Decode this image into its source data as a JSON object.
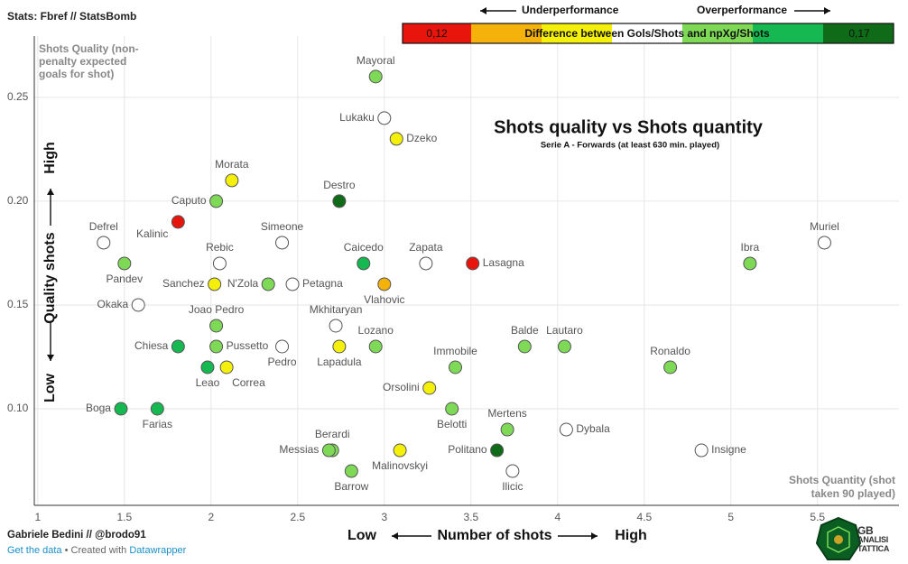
{
  "header": {
    "stats_note": "Stats: Fbref // StatsBomb",
    "author": "Gabriele Bedini // @brodo91",
    "credits_link": "Get the data",
    "credits_sep": " • Created with ",
    "credits_tool": "Datawrapper"
  },
  "legend": {
    "under_label": "Underperformance",
    "over_label": "Overperformance",
    "min_label": "0,12",
    "max_label": "0,17",
    "center_label": "Difference between Gols/Shots and npXg/Shots",
    "colors": [
      "#e8150d",
      "#f5b20a",
      "#f4f00a",
      "#ffffff",
      "#7ed957",
      "#15b851",
      "#0f6b18"
    ]
  },
  "logo": {
    "line1": "GB",
    "line2": "ANALISI",
    "line3": "TATTICA"
  },
  "chart_data": {
    "type": "scatter",
    "title": "Shots quality vs Shots quantity",
    "subtitle": "Serie A - Forwards (at least 630 min. played)",
    "xlabel": "Number of shots",
    "x_low": "Low",
    "x_high": "High",
    "ylabel": "Quality shots",
    "y_low": "Low",
    "y_high": "High",
    "y_note": "Shots Quality (non-penalty expected goals for shot)",
    "x_note": "Shots Quantity (shot taken 90 played)",
    "xlim": [
      0.98,
      5.97
    ],
    "ylim": [
      0.0535,
      0.2795
    ],
    "x_ticks": [
      1,
      1.5,
      2,
      2.5,
      3,
      3.5,
      4,
      4.5,
      5,
      5.5
    ],
    "x_tick_labels": [
      "1",
      "1.5",
      "2",
      "2.5",
      "3",
      "3.5",
      "4",
      "4.5",
      "5",
      "5.5"
    ],
    "y_ticks": [
      0.1,
      0.15,
      0.2,
      0.25
    ],
    "y_tick_labels": [
      "0.10",
      "0.15",
      "0.20",
      "0.25"
    ],
    "points": [
      {
        "name": "Mayoral",
        "x": 2.95,
        "y": 0.26,
        "color": "#7ed957",
        "label_pos": "top"
      },
      {
        "name": "Lukaku",
        "x": 3.0,
        "y": 0.24,
        "color": "#ffffff",
        "label_pos": "left"
      },
      {
        "name": "Dzeko",
        "x": 3.07,
        "y": 0.23,
        "color": "#f4f00a",
        "label_pos": "right"
      },
      {
        "name": "Morata",
        "x": 2.12,
        "y": 0.21,
        "color": "#f4f00a",
        "label_pos": "top"
      },
      {
        "name": "Caputo",
        "x": 2.03,
        "y": 0.2,
        "color": "#7ed957",
        "label_pos": "left"
      },
      {
        "name": "Destro",
        "x": 2.74,
        "y": 0.2,
        "color": "#0f6b18",
        "label_pos": "top"
      },
      {
        "name": "Kalinic",
        "x": 1.81,
        "y": 0.19,
        "color": "#e8150d",
        "label_pos": "bottomleft"
      },
      {
        "name": "Defrel",
        "x": 1.38,
        "y": 0.18,
        "color": "#ffffff",
        "label_pos": "top"
      },
      {
        "name": "Simeone",
        "x": 2.41,
        "y": 0.18,
        "color": "#ffffff",
        "label_pos": "top"
      },
      {
        "name": "Muriel",
        "x": 5.54,
        "y": 0.18,
        "color": "#ffffff",
        "label_pos": "top"
      },
      {
        "name": "Pandev",
        "x": 1.5,
        "y": 0.17,
        "color": "#7ed957",
        "label_pos": "bottom"
      },
      {
        "name": "Rebic",
        "x": 2.05,
        "y": 0.17,
        "color": "#ffffff",
        "label_pos": "top"
      },
      {
        "name": "Caicedo",
        "x": 2.88,
        "y": 0.17,
        "color": "#15b851",
        "label_pos": "top"
      },
      {
        "name": "Zapata",
        "x": 3.24,
        "y": 0.17,
        "color": "#ffffff",
        "label_pos": "top"
      },
      {
        "name": "Lasagna",
        "x": 3.51,
        "y": 0.17,
        "color": "#e8150d",
        "label_pos": "right"
      },
      {
        "name": "Ibra",
        "x": 5.11,
        "y": 0.17,
        "color": "#7ed957",
        "label_pos": "top"
      },
      {
        "name": "Sanchez",
        "x": 2.02,
        "y": 0.16,
        "color": "#f4f00a",
        "label_pos": "left"
      },
      {
        "name": "N'Zola",
        "x": 2.33,
        "y": 0.16,
        "color": "#7ed957",
        "label_pos": "left"
      },
      {
        "name": "Petagna",
        "x": 2.47,
        "y": 0.16,
        "color": "#ffffff",
        "label_pos": "right"
      },
      {
        "name": "Vlahovic",
        "x": 3.0,
        "y": 0.16,
        "color": "#f5b20a",
        "label_pos": "bottom"
      },
      {
        "name": "Okaka",
        "x": 1.58,
        "y": 0.15,
        "color": "#ffffff",
        "label_pos": "left"
      },
      {
        "name": "Mkhitaryan",
        "x": 2.72,
        "y": 0.14,
        "color": "#ffffff",
        "label_pos": "top"
      },
      {
        "name": "Joao Pedro",
        "x": 2.03,
        "y": 0.14,
        "color": "#7ed957",
        "label_pos": "top"
      },
      {
        "name": "Chiesa",
        "x": 1.81,
        "y": 0.13,
        "color": "#15b851",
        "label_pos": "left"
      },
      {
        "name": "Pussetto",
        "x": 2.03,
        "y": 0.13,
        "color": "#7ed957",
        "label_pos": "right"
      },
      {
        "name": "Pedro",
        "x": 2.41,
        "y": 0.13,
        "color": "#ffffff",
        "label_pos": "bottom"
      },
      {
        "name": "Lapadula",
        "x": 2.74,
        "y": 0.13,
        "color": "#f4f00a",
        "label_pos": "bottom"
      },
      {
        "name": "Lozano",
        "x": 2.95,
        "y": 0.13,
        "color": "#7ed957",
        "label_pos": "top"
      },
      {
        "name": "Balde",
        "x": 3.81,
        "y": 0.13,
        "color": "#7ed957",
        "label_pos": "top"
      },
      {
        "name": "Lautaro",
        "x": 4.04,
        "y": 0.13,
        "color": "#7ed957",
        "label_pos": "top"
      },
      {
        "name": "Immobile",
        "x": 3.41,
        "y": 0.12,
        "color": "#7ed957",
        "label_pos": "top"
      },
      {
        "name": "Ronaldo",
        "x": 4.65,
        "y": 0.12,
        "color": "#7ed957",
        "label_pos": "top"
      },
      {
        "name": "Leao",
        "x": 1.98,
        "y": 0.12,
        "color": "#15b851",
        "label_pos": "bottom"
      },
      {
        "name": "Correa",
        "x": 2.09,
        "y": 0.12,
        "color": "#f4f00a",
        "label_pos": "bottomright"
      },
      {
        "name": "Orsolini",
        "x": 3.26,
        "y": 0.11,
        "color": "#f4f00a",
        "label_pos": "left"
      },
      {
        "name": "Boga",
        "x": 1.48,
        "y": 0.1,
        "color": "#15b851",
        "label_pos": "left"
      },
      {
        "name": "Farias",
        "x": 1.69,
        "y": 0.1,
        "color": "#15b851",
        "label_pos": "bottom"
      },
      {
        "name": "Belotti",
        "x": 3.39,
        "y": 0.1,
        "color": "#7ed957",
        "label_pos": "bottom"
      },
      {
        "name": "Mertens",
        "x": 3.71,
        "y": 0.09,
        "color": "#7ed957",
        "label_pos": "top"
      },
      {
        "name": "Dybala",
        "x": 4.05,
        "y": 0.09,
        "color": "#ffffff",
        "label_pos": "right"
      },
      {
        "name": "Berardi",
        "x": 2.7,
        "y": 0.08,
        "color": "#7ed957",
        "label_pos": "top"
      },
      {
        "name": "Messias",
        "x": 2.68,
        "y": 0.08,
        "color": "#7ed957",
        "label_pos": "left"
      },
      {
        "name": "Malinovskyi",
        "x": 3.09,
        "y": 0.08,
        "color": "#f4f00a",
        "label_pos": "bottom"
      },
      {
        "name": "Politano",
        "x": 3.65,
        "y": 0.08,
        "color": "#0f6b18",
        "label_pos": "left"
      },
      {
        "name": "Insigne",
        "x": 4.83,
        "y": 0.08,
        "color": "#ffffff",
        "label_pos": "right"
      },
      {
        "name": "Barrow",
        "x": 2.81,
        "y": 0.07,
        "color": "#7ed957",
        "label_pos": "bottom"
      },
      {
        "name": "Ilicic",
        "x": 3.74,
        "y": 0.07,
        "color": "#ffffff",
        "label_pos": "bottom"
      }
    ]
  }
}
